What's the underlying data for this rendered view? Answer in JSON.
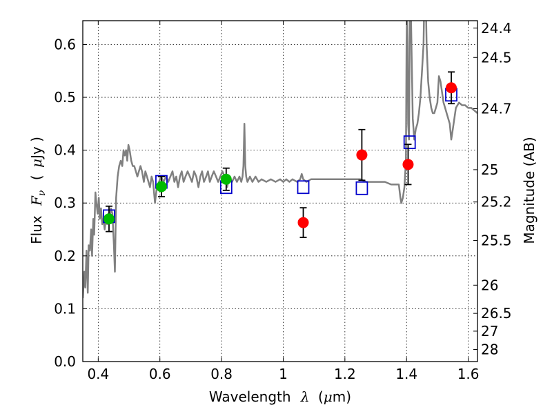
{
  "chart_data": {
    "type": "scatter",
    "title": "",
    "xlabel": "Wavelength",
    "xlabel_symbol": "λ",
    "xlabel_unit_prefix": "(",
    "xlabel_unit_mu": "μ",
    "xlabel_unit_rest": "m)",
    "ylabel": "Flux",
    "ylabel_symbol": "F",
    "ylabel_sub": "ν",
    "ylabel_unit_prefix": "(",
    "ylabel_unit_mu": "μ",
    "ylabel_unit_rest": "Jy )",
    "y2label": "Magnitude (AB)",
    "xlim": [
      0.35,
      1.63
    ],
    "ylim": [
      0.0,
      0.645
    ],
    "grid": true,
    "grid_style": "dotted",
    "x_ticks": [
      {
        "value": 0.4,
        "label": "0.4"
      },
      {
        "value": 0.6,
        "label": "0.6"
      },
      {
        "value": 0.8,
        "label": "0.8"
      },
      {
        "value": 1.0,
        "label": "1"
      },
      {
        "value": 1.2,
        "label": "1.2"
      },
      {
        "value": 1.4,
        "label": "1.4"
      },
      {
        "value": 1.6,
        "label": "1.6"
      }
    ],
    "y_ticks": [
      {
        "value": 0.0,
        "label": "0.0"
      },
      {
        "value": 0.1,
        "label": "0.1"
      },
      {
        "value": 0.2,
        "label": "0.2"
      },
      {
        "value": 0.3,
        "label": "0.3"
      },
      {
        "value": 0.4,
        "label": "0.4"
      },
      {
        "value": 0.5,
        "label": "0.5"
      },
      {
        "value": 0.6,
        "label": "0.6"
      }
    ],
    "y2_ticks": [
      {
        "value": 24.4,
        "label": "24.4"
      },
      {
        "value": 24.5,
        "label": "24.5"
      },
      {
        "value": 24.7,
        "label": "24.7"
      },
      {
        "value": 25.0,
        "label": "25"
      },
      {
        "value": 25.2,
        "label": "25.2"
      },
      {
        "value": 25.5,
        "label": "25.5"
      },
      {
        "value": 26.0,
        "label": "26"
      },
      {
        "value": 26.5,
        "label": "26.5"
      },
      {
        "value": 27.0,
        "label": "27"
      },
      {
        "value": 28.0,
        "label": "28"
      }
    ],
    "magnitude_zero_point": 23.9,
    "series": [
      {
        "kind": "line",
        "color": "#808080",
        "points": [
          [
            0.35,
            0.12
          ],
          [
            0.355,
            0.17
          ],
          [
            0.358,
            0.14
          ],
          [
            0.362,
            0.21
          ],
          [
            0.366,
            0.13
          ],
          [
            0.369,
            0.22
          ],
          [
            0.373,
            0.21
          ],
          [
            0.377,
            0.25
          ],
          [
            0.38,
            0.2
          ],
          [
            0.384,
            0.27
          ],
          [
            0.387,
            0.24
          ],
          [
            0.391,
            0.32
          ],
          [
            0.394,
            0.3
          ],
          [
            0.398,
            0.28
          ],
          [
            0.402,
            0.31
          ],
          [
            0.405,
            0.27
          ],
          [
            0.409,
            0.29
          ],
          [
            0.413,
            0.26
          ],
          [
            0.417,
            0.27
          ],
          [
            0.421,
            0.25
          ],
          [
            0.425,
            0.27
          ],
          [
            0.429,
            0.26
          ],
          [
            0.433,
            0.28
          ],
          [
            0.437,
            0.27
          ],
          [
            0.441,
            0.29
          ],
          [
            0.446,
            0.28
          ],
          [
            0.451,
            0.22
          ],
          [
            0.454,
            0.17
          ],
          [
            0.458,
            0.31
          ],
          [
            0.463,
            0.35
          ],
          [
            0.468,
            0.37
          ],
          [
            0.473,
            0.38
          ],
          [
            0.478,
            0.37
          ],
          [
            0.482,
            0.4
          ],
          [
            0.486,
            0.39
          ],
          [
            0.49,
            0.4
          ],
          [
            0.494,
            0.38
          ],
          [
            0.498,
            0.41
          ],
          [
            0.502,
            0.4
          ],
          [
            0.507,
            0.38
          ],
          [
            0.512,
            0.37
          ],
          [
            0.517,
            0.37
          ],
          [
            0.522,
            0.36
          ],
          [
            0.527,
            0.35
          ],
          [
            0.532,
            0.36
          ],
          [
            0.537,
            0.37
          ],
          [
            0.542,
            0.36
          ],
          [
            0.548,
            0.34
          ],
          [
            0.553,
            0.36
          ],
          [
            0.558,
            0.35
          ],
          [
            0.563,
            0.34
          ],
          [
            0.568,
            0.33
          ],
          [
            0.573,
            0.35
          ],
          [
            0.578,
            0.34
          ],
          [
            0.584,
            0.3
          ],
          [
            0.59,
            0.33
          ],
          [
            0.597,
            0.34
          ],
          [
            0.604,
            0.35
          ],
          [
            0.612,
            0.34
          ],
          [
            0.62,
            0.35
          ],
          [
            0.627,
            0.34
          ],
          [
            0.634,
            0.35
          ],
          [
            0.641,
            0.36
          ],
          [
            0.647,
            0.34
          ],
          [
            0.653,
            0.35
          ],
          [
            0.659,
            0.33
          ],
          [
            0.665,
            0.35
          ],
          [
            0.671,
            0.36
          ],
          [
            0.677,
            0.34
          ],
          [
            0.683,
            0.35
          ],
          [
            0.69,
            0.36
          ],
          [
            0.697,
            0.35
          ],
          [
            0.704,
            0.34
          ],
          [
            0.711,
            0.36
          ],
          [
            0.718,
            0.35
          ],
          [
            0.725,
            0.33
          ],
          [
            0.731,
            0.35
          ],
          [
            0.737,
            0.36
          ],
          [
            0.743,
            0.34
          ],
          [
            0.75,
            0.35
          ],
          [
            0.756,
            0.36
          ],
          [
            0.762,
            0.34
          ],
          [
            0.768,
            0.35
          ],
          [
            0.775,
            0.36
          ],
          [
            0.782,
            0.35
          ],
          [
            0.789,
            0.34
          ],
          [
            0.796,
            0.35
          ],
          [
            0.803,
            0.36
          ],
          [
            0.81,
            0.35
          ],
          [
            0.818,
            0.33
          ],
          [
            0.826,
            0.35
          ],
          [
            0.834,
            0.34
          ],
          [
            0.842,
            0.35
          ],
          [
            0.85,
            0.34
          ],
          [
            0.858,
            0.35
          ],
          [
            0.864,
            0.34
          ],
          [
            0.868,
            0.35
          ],
          [
            0.871,
            0.37
          ],
          [
            0.874,
            0.45
          ],
          [
            0.877,
            0.37
          ],
          [
            0.88,
            0.35
          ],
          [
            0.884,
            0.34
          ],
          [
            0.892,
            0.35
          ],
          [
            0.9,
            0.34
          ],
          [
            0.91,
            0.35
          ],
          [
            0.92,
            0.34
          ],
          [
            0.93,
            0.345
          ],
          [
            0.945,
            0.34
          ],
          [
            0.96,
            0.345
          ],
          [
            0.975,
            0.34
          ],
          [
            0.99,
            0.345
          ],
          [
            1.0,
            0.34
          ],
          [
            1.01,
            0.345
          ],
          [
            1.02,
            0.34
          ],
          [
            1.03,
            0.345
          ],
          [
            1.045,
            0.34
          ],
          [
            1.055,
            0.345
          ],
          [
            1.06,
            0.355
          ],
          [
            1.065,
            0.345
          ],
          [
            1.075,
            0.34
          ],
          [
            1.09,
            0.345
          ],
          [
            1.11,
            0.345
          ],
          [
            1.13,
            0.345
          ],
          [
            1.15,
            0.345
          ],
          [
            1.17,
            0.345
          ],
          [
            1.19,
            0.345
          ],
          [
            1.21,
            0.345
          ],
          [
            1.23,
            0.345
          ],
          [
            1.25,
            0.345
          ],
          [
            1.27,
            0.34
          ],
          [
            1.29,
            0.34
          ],
          [
            1.31,
            0.34
          ],
          [
            1.33,
            0.34
          ],
          [
            1.35,
            0.335
          ],
          [
            1.365,
            0.335
          ],
          [
            1.375,
            0.335
          ],
          [
            1.38,
            0.31
          ],
          [
            1.383,
            0.3
          ],
          [
            1.388,
            0.31
          ],
          [
            1.393,
            0.33
          ],
          [
            1.398,
            0.38
          ],
          [
            1.4,
            0.6
          ],
          [
            1.402,
            0.7
          ],
          [
            1.405,
            0.45
          ],
          [
            1.408,
            0.42
          ],
          [
            1.41,
            0.6
          ],
          [
            1.413,
            0.7
          ],
          [
            1.42,
            0.46
          ],
          [
            1.425,
            0.42
          ],
          [
            1.43,
            0.44
          ],
          [
            1.435,
            0.45
          ],
          [
            1.44,
            0.47
          ],
          [
            1.445,
            0.5
          ],
          [
            1.45,
            0.55
          ],
          [
            1.455,
            0.6
          ],
          [
            1.458,
            0.7
          ],
          [
            1.462,
            0.7
          ],
          [
            1.465,
            0.6
          ],
          [
            1.47,
            0.53
          ],
          [
            1.475,
            0.5
          ],
          [
            1.48,
            0.48
          ],
          [
            1.485,
            0.47
          ],
          [
            1.49,
            0.47
          ],
          [
            1.495,
            0.48
          ],
          [
            1.5,
            0.49
          ],
          [
            1.505,
            0.54
          ],
          [
            1.51,
            0.53
          ],
          [
            1.515,
            0.51
          ],
          [
            1.52,
            0.49
          ],
          [
            1.525,
            0.48
          ],
          [
            1.53,
            0.47
          ],
          [
            1.54,
            0.45
          ],
          [
            1.545,
            0.42
          ],
          [
            1.55,
            0.44
          ],
          [
            1.555,
            0.46
          ],
          [
            1.56,
            0.48
          ],
          [
            1.57,
            0.49
          ],
          [
            1.58,
            0.485
          ],
          [
            1.59,
            0.485
          ],
          [
            1.6,
            0.48
          ],
          [
            1.61,
            0.48
          ],
          [
            1.62,
            0.475
          ],
          [
            1.63,
            0.47
          ]
        ]
      },
      {
        "kind": "open-square",
        "color": "#0000cc",
        "points": [
          [
            0.435,
            0.275
          ],
          [
            0.605,
            0.34
          ],
          [
            0.815,
            0.33
          ],
          [
            1.065,
            0.33
          ],
          [
            1.255,
            0.328
          ],
          [
            1.41,
            0.415
          ],
          [
            1.545,
            0.505
          ]
        ]
      },
      {
        "kind": "filled-circle-errorbar",
        "color": "#00bb00",
        "points": [
          {
            "x": 0.435,
            "y": 0.27,
            "yerr": 0.024
          },
          {
            "x": 0.605,
            "y": 0.331,
            "yerr": 0.019
          },
          {
            "x": 0.815,
            "y": 0.345,
            "yerr": 0.021
          }
        ]
      },
      {
        "kind": "filled-circle-errorbar",
        "color": "#ff0000",
        "points": [
          {
            "x": 1.065,
            "y": 0.263,
            "yerr": 0.028
          },
          {
            "x": 1.255,
            "y": 0.391,
            "yerr": 0.048
          },
          {
            "x": 1.405,
            "y": 0.373,
            "yerr": 0.038
          },
          {
            "x": 1.545,
            "y": 0.518,
            "yerr": 0.03
          }
        ]
      }
    ]
  }
}
